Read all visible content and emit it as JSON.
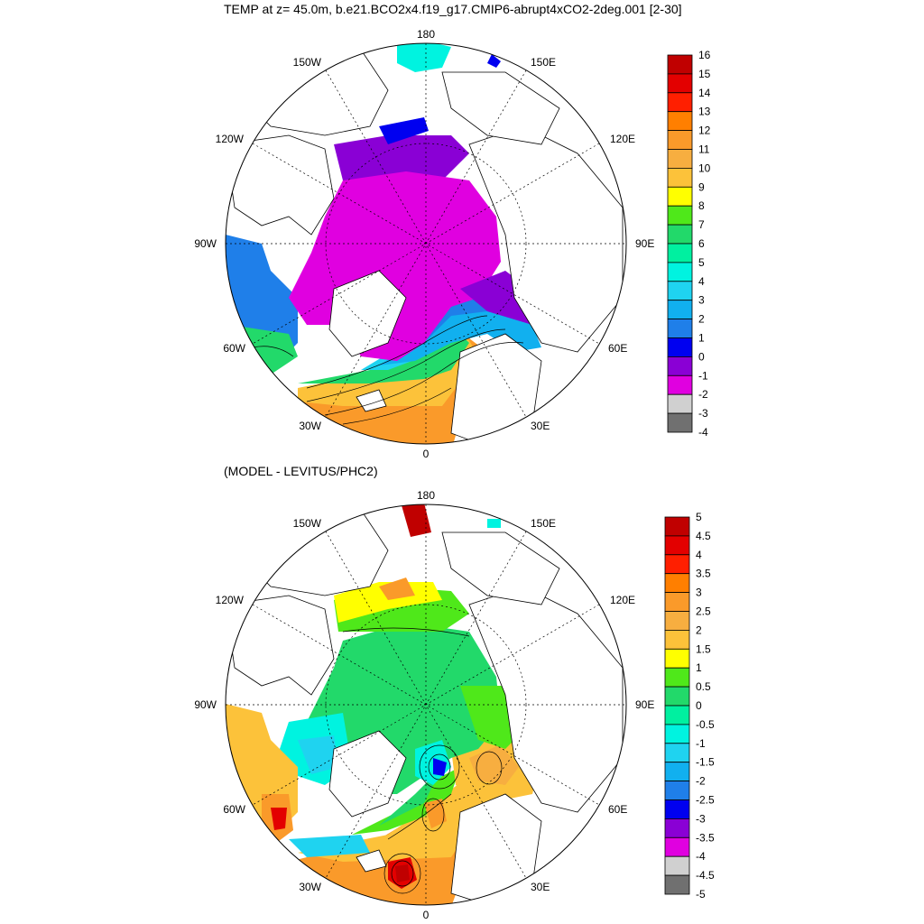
{
  "maps": [
    {
      "id": "temp",
      "title": "TEMP at z=  45.0m, b.e21.BCO2x4.f19_g17.CMIP6-abrupt4xCO2-2deg.001 [2-30]",
      "lon_labels": [
        "180",
        "150E",
        "120E",
        "90E",
        "60E",
        "30E",
        "0",
        "30W",
        "60W",
        "90W",
        "120W",
        "150W"
      ],
      "colorbar": {
        "levels": [
          "16",
          "15",
          "14",
          "13",
          "12",
          "11",
          "10",
          "9",
          "8",
          "7",
          "6",
          "5",
          "4",
          "3",
          "2",
          "1",
          "0",
          "-1",
          "-2",
          "-3",
          "-4"
        ],
        "colors": [
          "#c00000",
          "#e30000",
          "#ff1f00",
          "#ff7f00",
          "#fa9a2a",
          "#f7ae40",
          "#fcc23a",
          "#ffff00",
          "#4fe81a",
          "#22d96a",
          "#00f0a0",
          "#00f3e0",
          "#1fd3f0",
          "#11b0ef",
          "#1f7fe9",
          "#0000f0",
          "#8a00d5",
          "#e000e0",
          "#d0d0d0",
          "#707070"
        ]
      }
    },
    {
      "id": "diff",
      "title": "(MODEL - LEVITUS/PHC2)",
      "lon_labels": [
        "180",
        "150E",
        "120E",
        "90E",
        "60E",
        "30E",
        "0",
        "30W",
        "60W",
        "90W",
        "120W",
        "150W"
      ],
      "colorbar": {
        "levels": [
          "5",
          "4.5",
          "4",
          "3.5",
          "3",
          "2.5",
          "2",
          "1.5",
          "1",
          "0.5",
          "0",
          "-0.5",
          "-1",
          "-1.5",
          "-2",
          "-2.5",
          "-3",
          "-3.5",
          "-4",
          "-4.5",
          "-5"
        ],
        "colors": [
          "#c00000",
          "#e30000",
          "#ff1f00",
          "#ff7f00",
          "#fa9a2a",
          "#f7ae40",
          "#fcc23a",
          "#ffff00",
          "#4fe81a",
          "#22d96a",
          "#00f0a0",
          "#00f3e0",
          "#1fd3f0",
          "#11b0ef",
          "#1f7fe9",
          "#0000f0",
          "#8a00d5",
          "#e000e0",
          "#d0d0d0",
          "#707070"
        ]
      }
    }
  ]
}
